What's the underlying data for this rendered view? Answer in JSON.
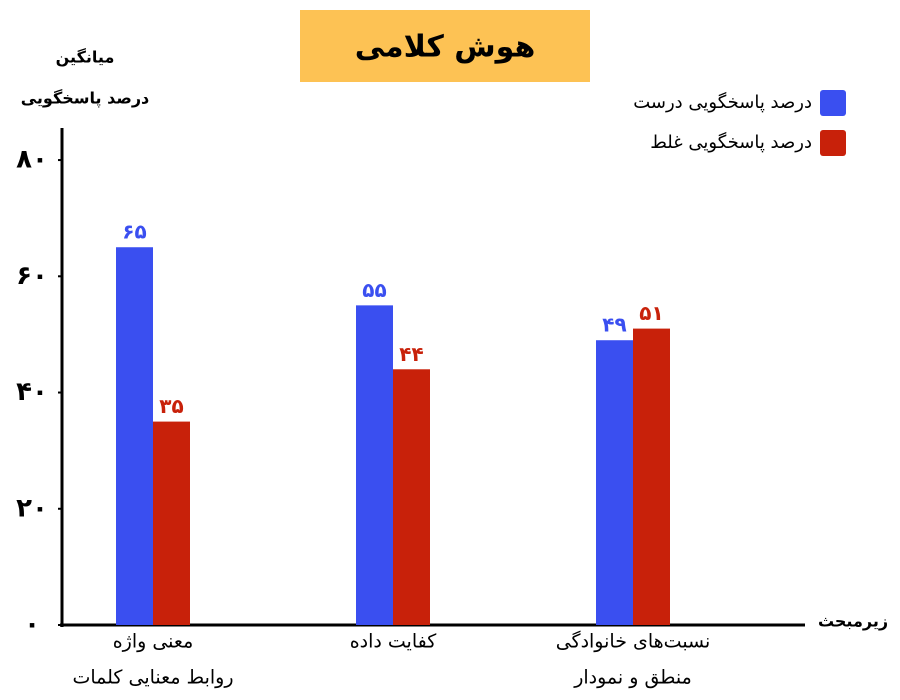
{
  "chart_data": {
    "type": "bar",
    "title": "هوش کلامی",
    "y_label": [
      "میانگین",
      "درصد پاسخگویی"
    ],
    "x_label": "زیرمبحث",
    "categories": [
      [
        "معنی واژه",
        "روابط معنایی کلمات"
      ],
      [
        "کفایت داده"
      ],
      [
        "نسبت‌های خانوادگی",
        "منطق و نمودار"
      ]
    ],
    "series": [
      {
        "name": "درصد پاسخگویی درست",
        "color": "#3a4ff0",
        "values": [
          65,
          55,
          49
        ],
        "value_labels": [
          "۶۵",
          "۵۵",
          "۴۹"
        ]
      },
      {
        "name": "درصد پاسخگویی غلط",
        "color": "#c8210a",
        "values": [
          35,
          44,
          51
        ],
        "value_labels": [
          "۳۵",
          "۴۴",
          "۵۱"
        ]
      }
    ],
    "ylim": [
      0,
      85
    ],
    "yticks": [
      {
        "value": 0,
        "label": "۰"
      },
      {
        "value": 20,
        "label": "۲۰"
      },
      {
        "value": 40,
        "label": "۴۰"
      },
      {
        "value": 60,
        "label": "۶۰"
      },
      {
        "value": 80,
        "label": "۸۰"
      }
    ],
    "grid": false
  }
}
